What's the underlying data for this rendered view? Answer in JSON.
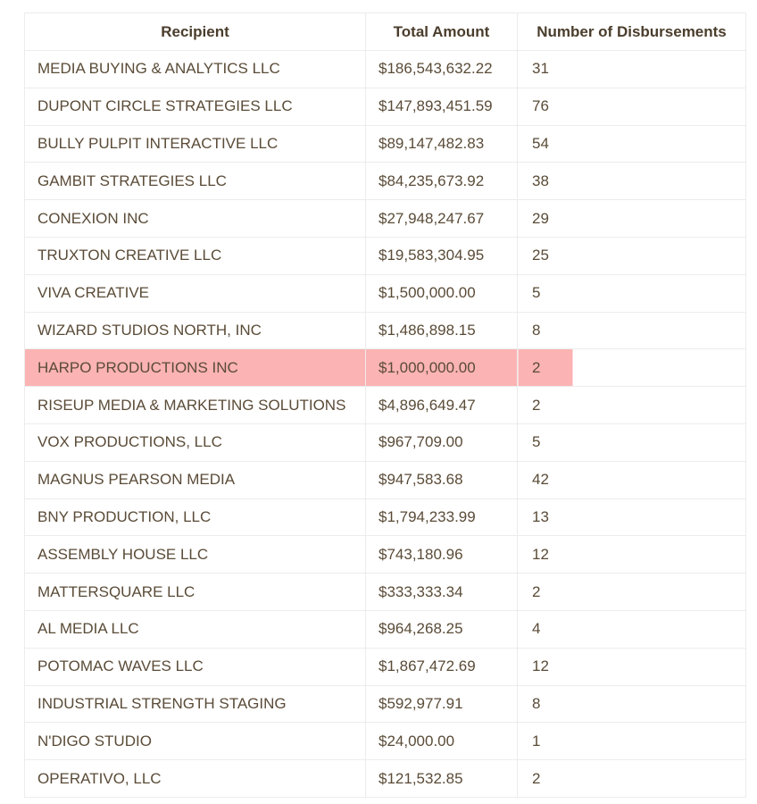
{
  "table": {
    "headers": {
      "recipient": "Recipient",
      "total_amount": "Total Amount",
      "disbursements": "Number of Disbursements"
    },
    "highlight_color": "#fbb3b3",
    "highlighted_row_index": 8,
    "rows": [
      {
        "recipient": "MEDIA BUYING & ANALYTICS LLC",
        "amount": "$186,543,632.22",
        "count": "31"
      },
      {
        "recipient": "DUPONT CIRCLE STRATEGIES LLC",
        "amount": "$147,893,451.59",
        "count": "76"
      },
      {
        "recipient": "BULLY PULPIT INTERACTIVE LLC",
        "amount": "$89,147,482.83",
        "count": "54"
      },
      {
        "recipient": "GAMBIT STRATEGIES LLC",
        "amount": "$84,235,673.92",
        "count": "38"
      },
      {
        "recipient": "CONEXION INC",
        "amount": "$27,948,247.67",
        "count": "29"
      },
      {
        "recipient": "TRUXTON CREATIVE LLC",
        "amount": "$19,583,304.95",
        "count": "25"
      },
      {
        "recipient": "VIVA CREATIVE",
        "amount": "$1,500,000.00",
        "count": "5"
      },
      {
        "recipient": "WIZARD STUDIOS NORTH, INC",
        "amount": "$1,486,898.15",
        "count": "8"
      },
      {
        "recipient": "HARPO PRODUCTIONS INC",
        "amount": "$1,000,000.00",
        "count": "2"
      },
      {
        "recipient": "RISEUP MEDIA & MARKETING SOLUTIONS",
        "amount": "$4,896,649.47",
        "count": "2"
      },
      {
        "recipient": "VOX PRODUCTIONS, LLC",
        "amount": "$967,709.00",
        "count": "5"
      },
      {
        "recipient": "MAGNUS PEARSON MEDIA",
        "amount": "$947,583.68",
        "count": "42"
      },
      {
        "recipient": "BNY PRODUCTION, LLC",
        "amount": "$1,794,233.99",
        "count": "13"
      },
      {
        "recipient": "ASSEMBLY HOUSE LLC",
        "amount": "$743,180.96",
        "count": "12"
      },
      {
        "recipient": "MATTERSQUARE LLC",
        "amount": "$333,333.34",
        "count": "2"
      },
      {
        "recipient": "AL MEDIA LLC",
        "amount": "$964,268.25",
        "count": "4"
      },
      {
        "recipient": "POTOMAC WAVES LLC",
        "amount": "$1,867,472.69",
        "count": "12"
      },
      {
        "recipient": "INDUSTRIAL STRENGTH STAGING",
        "amount": "$592,977.91",
        "count": "8"
      },
      {
        "recipient": "N'DIGO STUDIO",
        "amount": "$24,000.00",
        "count": "1"
      },
      {
        "recipient": "OPERATIVO, LLC",
        "amount": "$121,532.85",
        "count": "2"
      }
    ]
  }
}
